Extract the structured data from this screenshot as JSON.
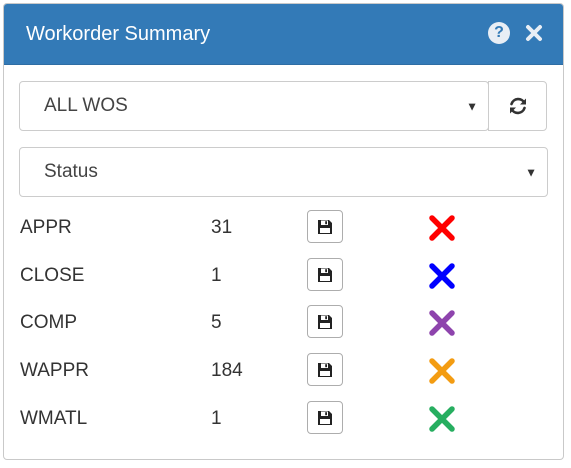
{
  "panel": {
    "title": "Workorder Summary",
    "help_icon": "question-circle-icon",
    "close_icon": "close-icon"
  },
  "filters": {
    "wos_select": {
      "selected": "ALL WOS"
    },
    "refresh_icon": "refresh-icon",
    "group_select": {
      "selected": "Status"
    }
  },
  "rows": [
    {
      "label": "APPR",
      "count": "31",
      "color": "#ff0000"
    },
    {
      "label": "CLOSE",
      "count": "1",
      "color": "#0000ff"
    },
    {
      "label": "COMP",
      "count": "5",
      "color": "#8e44ad"
    },
    {
      "label": "WAPPR",
      "count": "184",
      "color": "#f39c12"
    },
    {
      "label": "WMATL",
      "count": "1",
      "color": "#27ae60"
    }
  ],
  "row_icons": {
    "save": "floppy-disk-icon",
    "remove": "times-icon"
  }
}
